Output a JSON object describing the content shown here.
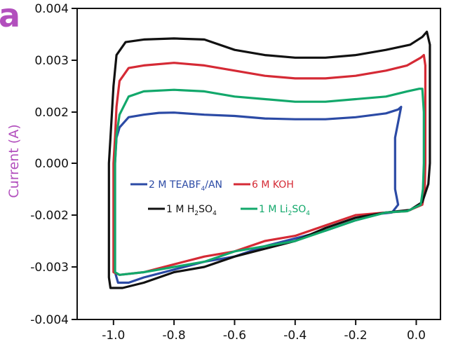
{
  "panel_label": "a",
  "colors": {
    "accent": "#b24fbd",
    "axis": "#111111"
  },
  "chart_data": {
    "type": "line",
    "title": "",
    "xlabel": "",
    "ylabel": "Current (A)",
    "xlim": [
      -1.12,
      0.08
    ],
    "ylim": [
      -0.004,
      0.004
    ],
    "y_ticks": [
      0.004,
      0.003,
      0.002,
      0.0,
      -0.002,
      -0.003,
      -0.004
    ],
    "y_tick_labels": [
      "0.004",
      "0.003",
      "0.002",
      "0.000",
      "-0.002",
      "-0.003",
      "-0.004"
    ],
    "x_ticks": [
      -1.0,
      -0.8,
      -0.6,
      -0.4,
      -0.2,
      0.0
    ],
    "x_tick_labels": [
      "-1.0",
      "-0.8",
      "-0.6",
      "-0.4",
      "-0.2",
      "0.0"
    ],
    "grid": false,
    "legend_position": "center",
    "series": [
      {
        "name": "2 M TEABF4/AN",
        "legend_parts": [
          "2 M TEABF",
          "4",
          "/AN"
        ],
        "color": "#2b4aa5",
        "points": [
          [
            -0.05,
            0.0021
          ],
          [
            -0.06,
            0.0016
          ],
          [
            -0.07,
            0.001
          ],
          [
            -0.07,
            0.0
          ],
          [
            -0.07,
            -0.001
          ],
          [
            -0.06,
            -0.0016
          ],
          [
            -0.08,
            -0.0019
          ],
          [
            -0.12,
            -0.00195
          ],
          [
            -0.2,
            -0.0021
          ],
          [
            -0.3,
            -0.0023
          ],
          [
            -0.4,
            -0.00245
          ],
          [
            -0.5,
            -0.0026
          ],
          [
            -0.6,
            -0.0028
          ],
          [
            -0.7,
            -0.0029
          ],
          [
            -0.8,
            -0.00305
          ],
          [
            -0.9,
            -0.0032
          ],
          [
            -0.95,
            -0.0033
          ],
          [
            -0.985,
            -0.0033
          ],
          [
            -0.995,
            -0.0031
          ],
          [
            -0.995,
            -0.002
          ],
          [
            -0.995,
            0.0
          ],
          [
            -0.99,
            0.001
          ],
          [
            -0.98,
            0.0014
          ],
          [
            -0.95,
            0.0018
          ],
          [
            -0.9,
            0.0019
          ],
          [
            -0.85,
            0.00197
          ],
          [
            -0.8,
            0.00198
          ],
          [
            -0.7,
            0.0019
          ],
          [
            -0.6,
            0.00185
          ],
          [
            -0.5,
            0.00175
          ],
          [
            -0.4,
            0.00172
          ],
          [
            -0.3,
            0.00172
          ],
          [
            -0.2,
            0.0018
          ],
          [
            -0.1,
            0.00195
          ],
          [
            -0.06,
            0.00205
          ],
          [
            -0.05,
            0.0021
          ]
        ]
      },
      {
        "name": "6 M KOH",
        "legend_parts": [
          "6 M KOH"
        ],
        "color": "#d52a35",
        "points": [
          [
            0.025,
            0.0031
          ],
          [
            0.03,
            0.0029
          ],
          [
            0.03,
            0.002
          ],
          [
            0.03,
            0.0
          ],
          [
            0.028,
            -0.001
          ],
          [
            0.02,
            -0.0016
          ],
          [
            -0.03,
            -0.00185
          ],
          [
            -0.1,
            -0.0019
          ],
          [
            -0.2,
            -0.002
          ],
          [
            -0.3,
            -0.0022
          ],
          [
            -0.4,
            -0.0024
          ],
          [
            -0.5,
            -0.0025
          ],
          [
            -0.6,
            -0.0027
          ],
          [
            -0.7,
            -0.0028
          ],
          [
            -0.8,
            -0.00295
          ],
          [
            -0.9,
            -0.0031
          ],
          [
            -0.98,
            -0.00315
          ],
          [
            -1.0,
            -0.0031
          ],
          [
            -1.0,
            -0.002
          ],
          [
            -1.0,
            0.0
          ],
          [
            -0.995,
            0.001
          ],
          [
            -0.99,
            0.0021
          ],
          [
            -0.98,
            0.0026
          ],
          [
            -0.95,
            0.00285
          ],
          [
            -0.9,
            0.0029
          ],
          [
            -0.8,
            0.00295
          ],
          [
            -0.7,
            0.0029
          ],
          [
            -0.6,
            0.0028
          ],
          [
            -0.5,
            0.0027
          ],
          [
            -0.4,
            0.00265
          ],
          [
            -0.3,
            0.00265
          ],
          [
            -0.2,
            0.0027
          ],
          [
            -0.1,
            0.0028
          ],
          [
            -0.03,
            0.0029
          ],
          [
            0.015,
            0.00305
          ],
          [
            0.025,
            0.0031
          ]
        ]
      },
      {
        "name": "1 M H2SO4",
        "legend_parts": [
          "1 M H",
          "2",
          "SO",
          "4"
        ],
        "color": "#111111",
        "points": [
          [
            0.035,
            0.00355
          ],
          [
            0.045,
            0.0033
          ],
          [
            0.045,
            0.002
          ],
          [
            0.045,
            0.0
          ],
          [
            0.04,
            -0.0008
          ],
          [
            0.02,
            -0.0015
          ],
          [
            -0.02,
            -0.0018
          ],
          [
            -0.1,
            -0.0019
          ],
          [
            -0.2,
            -0.00205
          ],
          [
            -0.3,
            -0.00225
          ],
          [
            -0.4,
            -0.0025
          ],
          [
            -0.5,
            -0.00265
          ],
          [
            -0.6,
            -0.0028
          ],
          [
            -0.7,
            -0.003
          ],
          [
            -0.8,
            -0.0031
          ],
          [
            -0.9,
            -0.0033
          ],
          [
            -0.97,
            -0.0034
          ],
          [
            -1.01,
            -0.0034
          ],
          [
            -1.015,
            -0.0032
          ],
          [
            -1.015,
            -0.002
          ],
          [
            -1.015,
            0.0
          ],
          [
            -1.01,
            0.001
          ],
          [
            -1.0,
            0.0025
          ],
          [
            -0.99,
            0.0031
          ],
          [
            -0.96,
            0.00335
          ],
          [
            -0.9,
            0.0034
          ],
          [
            -0.8,
            0.00342
          ],
          [
            -0.7,
            0.0034
          ],
          [
            -0.6,
            0.0032
          ],
          [
            -0.5,
            0.0031
          ],
          [
            -0.4,
            0.00305
          ],
          [
            -0.3,
            0.00305
          ],
          [
            -0.2,
            0.0031
          ],
          [
            -0.1,
            0.0032
          ],
          [
            -0.02,
            0.0033
          ],
          [
            0.02,
            0.00345
          ],
          [
            0.035,
            0.00355
          ]
        ]
      },
      {
        "name": "1 M Li2SO4",
        "legend_parts": [
          "1 M Li",
          "2",
          "SO",
          "4"
        ],
        "color": "#12a86b",
        "points": [
          [
            0.02,
            0.00245
          ],
          [
            0.025,
            0.002
          ],
          [
            0.025,
            0.0
          ],
          [
            0.022,
            -0.001
          ],
          [
            0.015,
            -0.0016
          ],
          [
            -0.03,
            -0.00185
          ],
          [
            -0.1,
            -0.0019
          ],
          [
            -0.2,
            -0.0021
          ],
          [
            -0.3,
            -0.0023
          ],
          [
            -0.4,
            -0.0025
          ],
          [
            -0.5,
            -0.0026
          ],
          [
            -0.6,
            -0.0027
          ],
          [
            -0.7,
            -0.0029
          ],
          [
            -0.8,
            -0.003
          ],
          [
            -0.9,
            -0.0031
          ],
          [
            -0.98,
            -0.00315
          ],
          [
            -0.995,
            -0.0031
          ],
          [
            -0.995,
            -0.002
          ],
          [
            -0.995,
            0.0
          ],
          [
            -0.99,
            0.0011
          ],
          [
            -0.98,
            0.0019
          ],
          [
            -0.95,
            0.0023
          ],
          [
            -0.9,
            0.0024
          ],
          [
            -0.8,
            0.00243
          ],
          [
            -0.7,
            0.0024
          ],
          [
            -0.6,
            0.0023
          ],
          [
            -0.5,
            0.00225
          ],
          [
            -0.4,
            0.0022
          ],
          [
            -0.3,
            0.0022
          ],
          [
            -0.2,
            0.00225
          ],
          [
            -0.1,
            0.0023
          ],
          [
            -0.03,
            0.0024
          ],
          [
            0.01,
            0.00245
          ],
          [
            0.02,
            0.00245
          ]
        ]
      }
    ]
  }
}
